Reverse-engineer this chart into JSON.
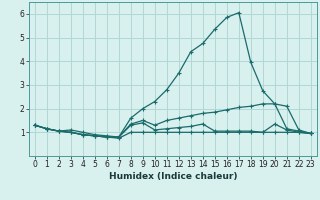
{
  "xlabel": "Humidex (Indice chaleur)",
  "background_color": "#d8f0ee",
  "grid_color": "#b0d8d4",
  "line_color": "#1a6b6b",
  "xlim": [
    -0.5,
    23.5
  ],
  "ylim": [
    0,
    6.5
  ],
  "yticks": [
    1,
    2,
    3,
    4,
    5,
    6
  ],
  "xtick_labels": [
    "0",
    "1",
    "2",
    "3",
    "4",
    "5",
    "6",
    "7",
    "8",
    "9",
    "10",
    "11",
    "12",
    "13",
    "14",
    "15",
    "16",
    "17",
    "18",
    "19",
    "20",
    "21",
    "22",
    "23"
  ],
  "series": [
    {
      "x": [
        0,
        1,
        2,
        3,
        4,
        5,
        6,
        7,
        8,
        9,
        10,
        11,
        12,
        13,
        14,
        15,
        16,
        17,
        18,
        19,
        20,
        21,
        22,
        23
      ],
      "y": [
        1.3,
        1.15,
        1.05,
        1.0,
        0.9,
        0.85,
        0.8,
        0.75,
        1.0,
        1.0,
        1.0,
        1.0,
        1.0,
        1.0,
        1.0,
        1.0,
        1.0,
        1.0,
        1.0,
        1.0,
        1.0,
        1.0,
        1.0,
        0.95
      ]
    },
    {
      "x": [
        0,
        1,
        2,
        3,
        4,
        5,
        6,
        7,
        8,
        9,
        10,
        11,
        12,
        13,
        14,
        15,
        16,
        17,
        18,
        19,
        20,
        21,
        22,
        23
      ],
      "y": [
        1.3,
        1.15,
        1.05,
        1.0,
        0.9,
        0.85,
        0.8,
        0.8,
        1.3,
        1.4,
        1.1,
        1.15,
        1.2,
        1.25,
        1.35,
        1.05,
        1.05,
        1.05,
        1.05,
        1.0,
        1.35,
        1.1,
        1.0,
        0.95
      ]
    },
    {
      "x": [
        0,
        1,
        2,
        3,
        4,
        5,
        6,
        7,
        8,
        9,
        10,
        11,
        12,
        13,
        14,
        15,
        16,
        17,
        18,
        19,
        20,
        21,
        22,
        23
      ],
      "y": [
        1.3,
        1.15,
        1.05,
        1.0,
        0.9,
        0.85,
        0.8,
        0.8,
        1.35,
        1.5,
        1.3,
        1.5,
        1.6,
        1.7,
        1.8,
        1.85,
        1.95,
        2.05,
        2.1,
        2.2,
        2.2,
        1.15,
        1.05,
        0.95
      ]
    },
    {
      "x": [
        0,
        1,
        2,
        3,
        4,
        5,
        6,
        7,
        8,
        9,
        10,
        11,
        12,
        13,
        14,
        15,
        16,
        17,
        18,
        19,
        20,
        21,
        22,
        23
      ],
      "y": [
        1.3,
        1.15,
        1.05,
        1.1,
        1.0,
        0.9,
        0.85,
        0.8,
        1.6,
        2.0,
        2.3,
        2.8,
        3.5,
        4.4,
        4.75,
        5.35,
        5.85,
        6.05,
        3.95,
        2.75,
        2.2,
        2.1,
        1.1,
        0.95
      ]
    }
  ]
}
